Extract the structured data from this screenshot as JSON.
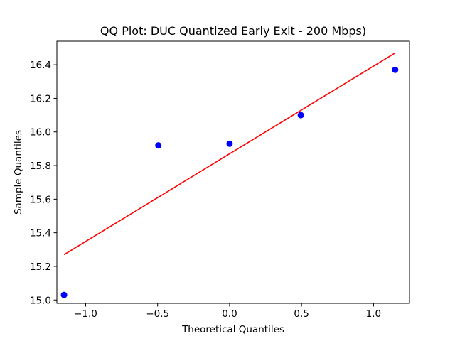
{
  "chart_data": {
    "type": "scatter",
    "title": "QQ Plot: DUC Quantized Early Exit - 200 Mbps)",
    "xlabel": "Theoretical Quantiles",
    "ylabel": "Sample Quantiles",
    "xlim": [
      -1.2,
      1.25
    ],
    "ylim": [
      14.98,
      16.54
    ],
    "xticks": [
      -1.0,
      -0.5,
      0.0,
      0.5,
      1.0
    ],
    "xtick_labels": [
      "−1.0",
      "−0.5",
      "0.0",
      "0.5",
      "1.0"
    ],
    "yticks": [
      15.0,
      15.2,
      15.4,
      15.6,
      15.8,
      16.0,
      16.2,
      16.4
    ],
    "ytick_labels": [
      "15.0",
      "15.2",
      "15.4",
      "15.6",
      "15.8",
      "16.0",
      "16.2",
      "16.4"
    ],
    "grid": false,
    "series": [
      {
        "kind": "points",
        "color": "#0000ff",
        "x": [
          -1.1503,
          -0.495,
          0.0,
          0.495,
          1.1503
        ],
        "y": [
          15.03,
          15.92,
          15.93,
          16.1,
          16.37
        ]
      },
      {
        "kind": "fit-line",
        "color": "#ff0000",
        "x": [
          -1.1503,
          1.1503
        ],
        "y": [
          15.27,
          16.47
        ]
      }
    ]
  }
}
